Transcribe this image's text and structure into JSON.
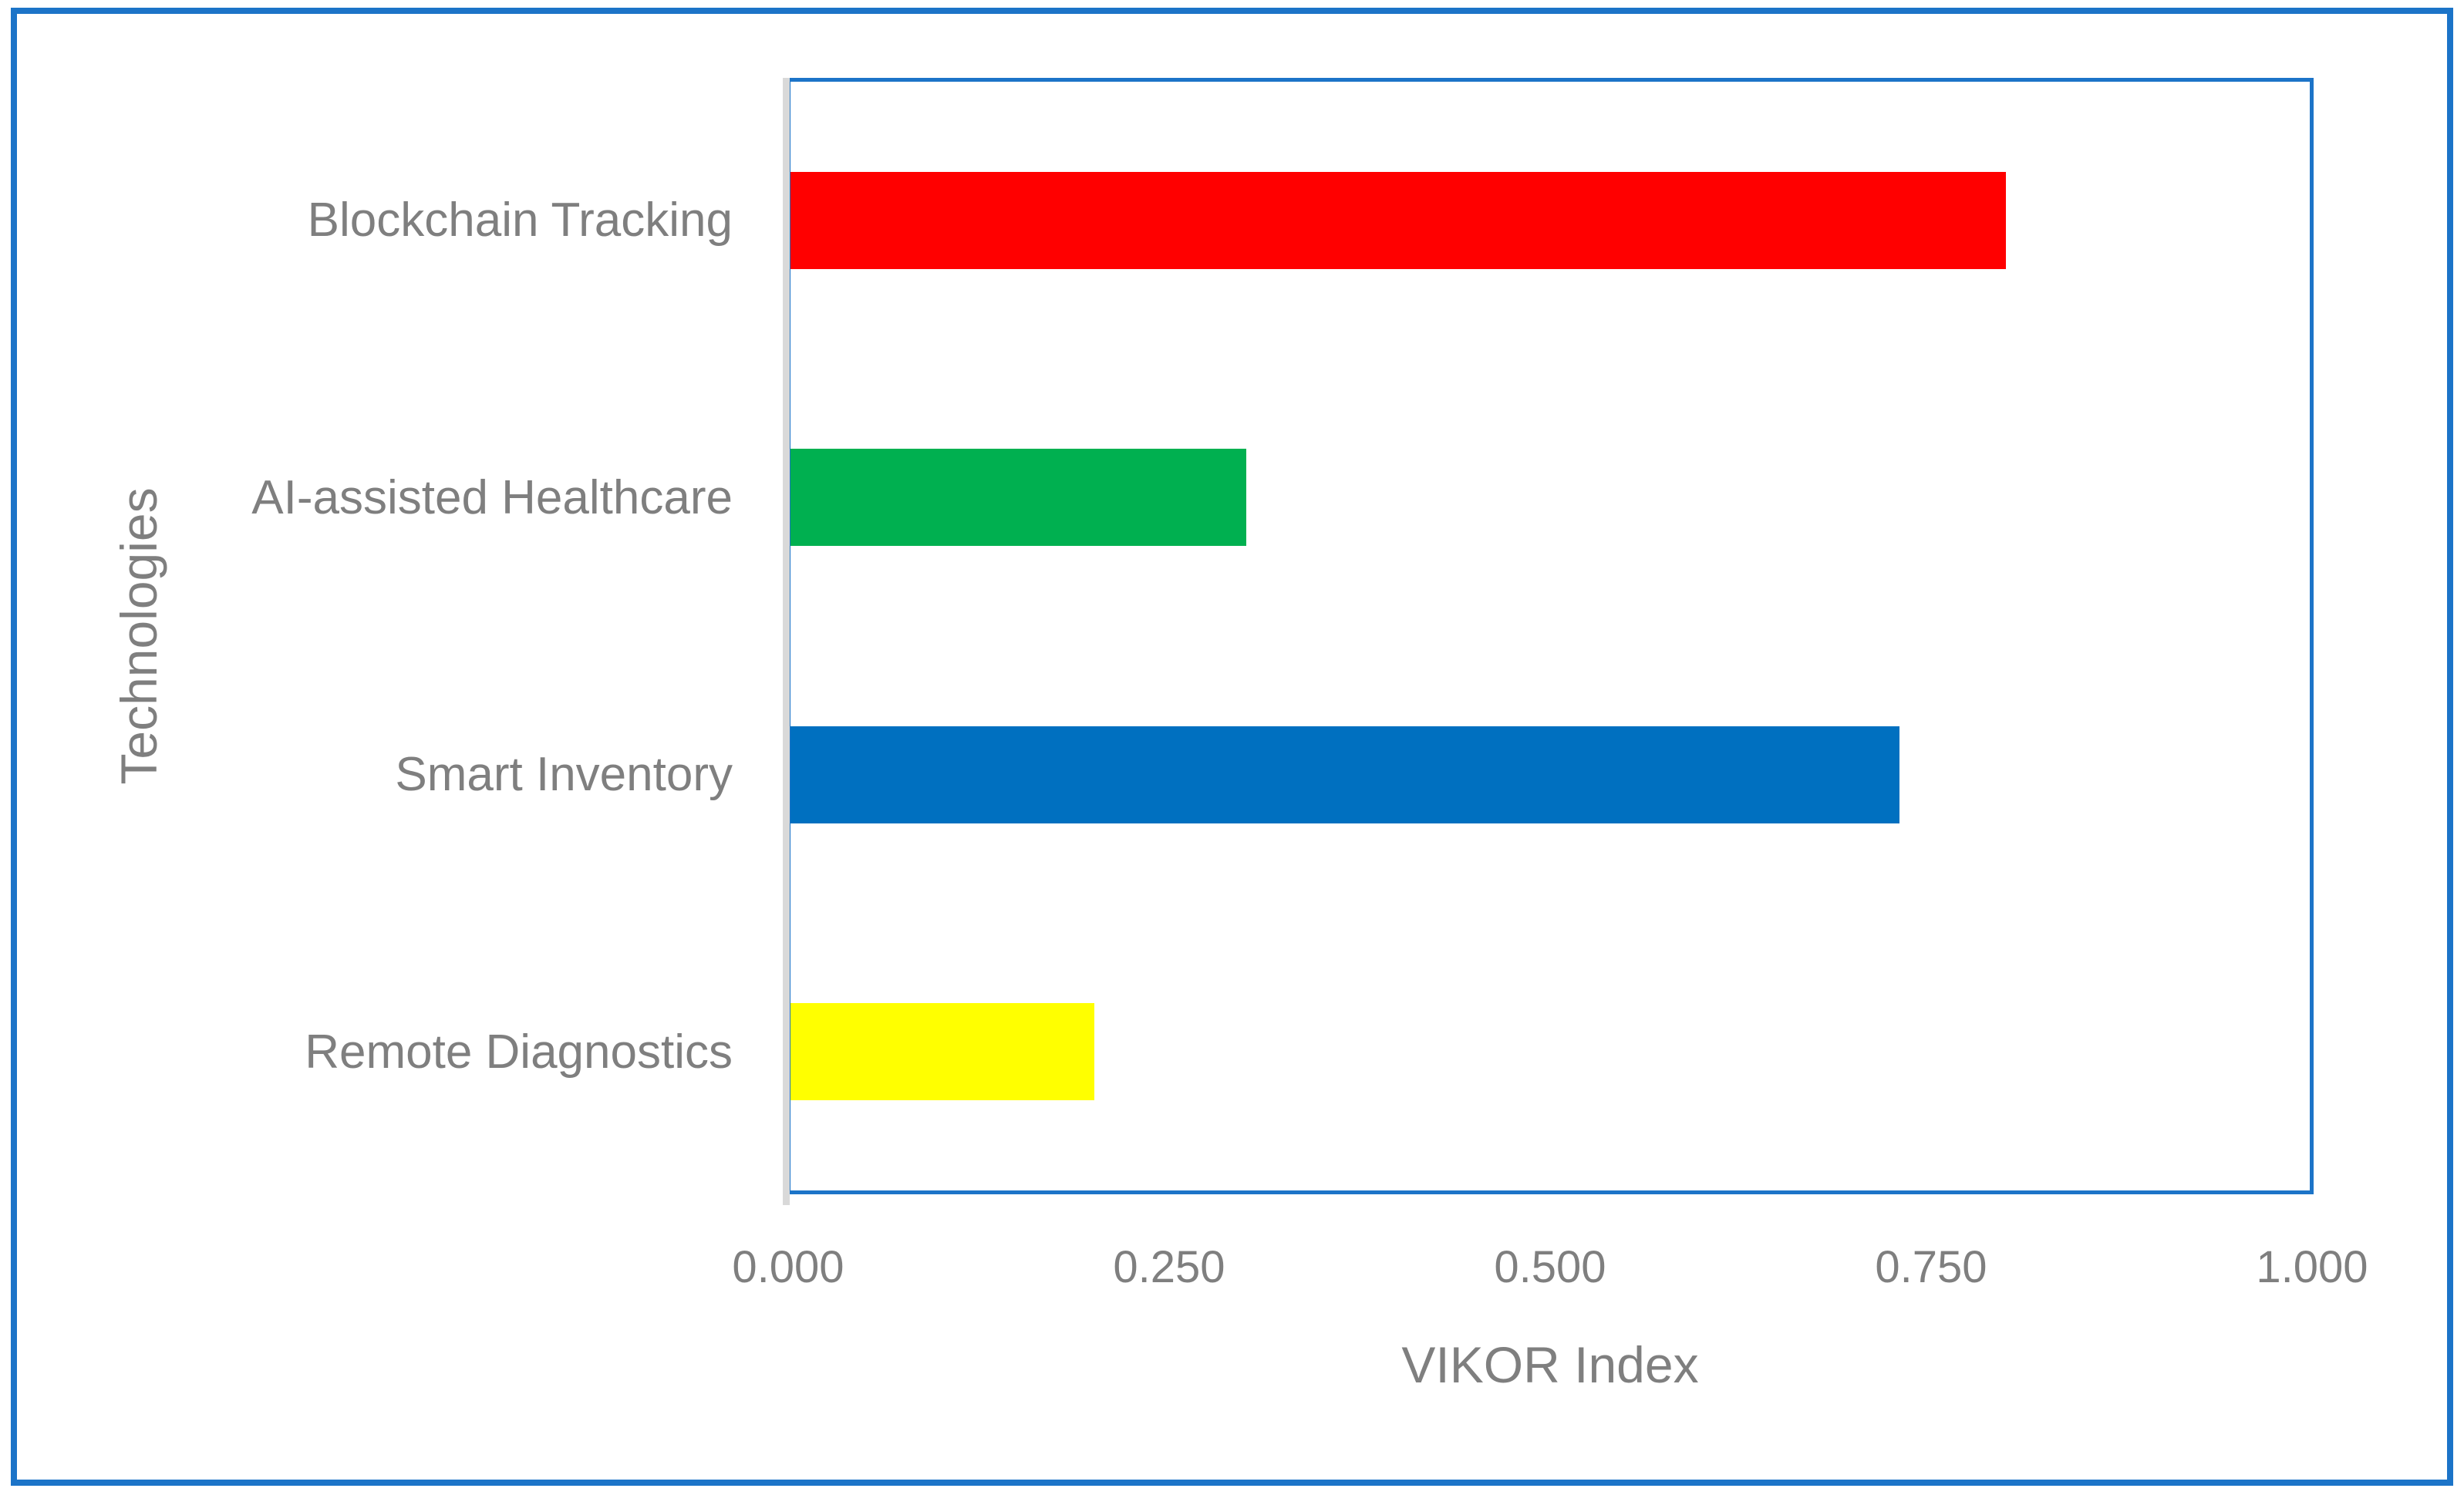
{
  "figure": {
    "background": "#FFFFFF",
    "border_color": "#1C74C8"
  },
  "chart_data": {
    "type": "bar",
    "orientation": "horizontal",
    "title": "",
    "xlabel": "VIKOR Index",
    "ylabel": "Technologies",
    "categories": [
      "Blockchain Tracking",
      "AI-assisted Healthcare",
      "Smart Inventory",
      "Remote Diagnostics"
    ],
    "values": [
      0.8,
      0.3,
      0.73,
      0.2
    ],
    "bar_colors": [
      "#FF0000",
      "#00B050",
      "#0070C0",
      "#FFFF00"
    ],
    "xlim": [
      0,
      1.0
    ],
    "x_tick_labels": [
      "0.000",
      "0.250",
      "0.500",
      "0.750",
      "1.000"
    ],
    "x_tick_values": [
      0,
      0.25,
      0.5,
      0.75,
      1.0
    ],
    "grid": false,
    "legend": false,
    "plot_border_color": "#1C74C8",
    "axis_line_color": "#D9D9D9",
    "text_color": "#7F7F7F"
  }
}
